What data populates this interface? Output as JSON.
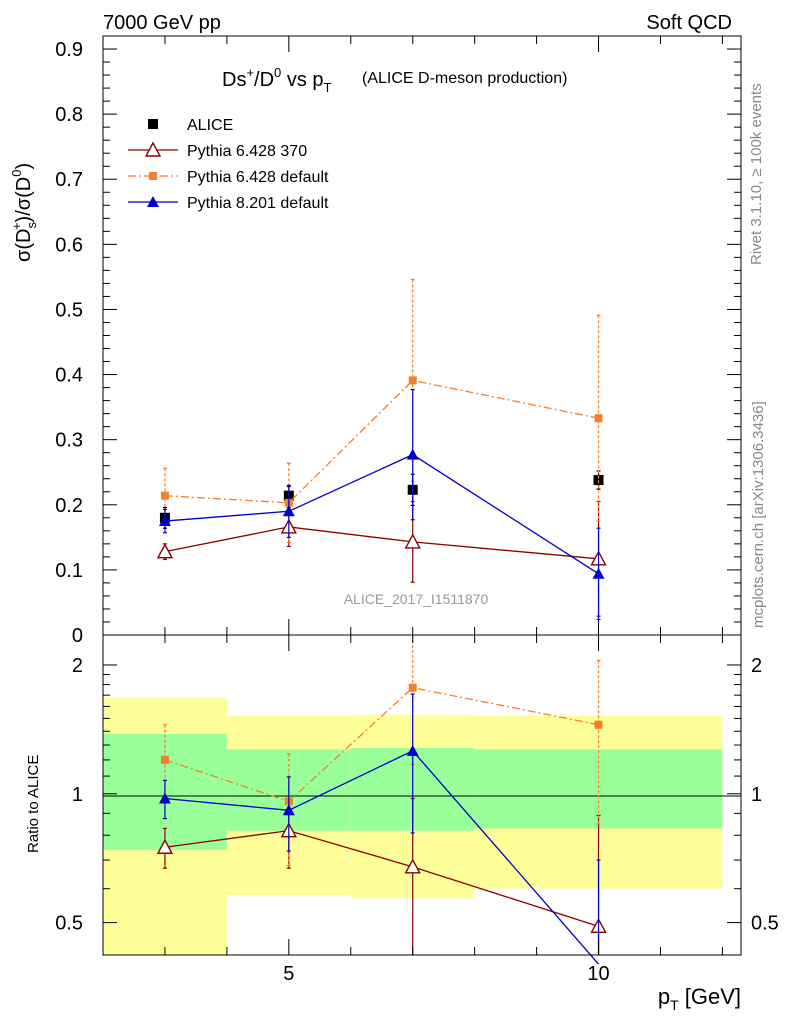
{
  "header": {
    "energy": "7000 GeV pp",
    "process": "Soft QCD"
  },
  "side_labels": {
    "rivet": "Rivet 3.1.10, ≥ 100k events",
    "mcplots": "mcplots.cern.ch [arXiv:1306.3436]"
  },
  "chart_data": [
    {
      "type": "line",
      "title": {
        "main": "Ds",
        "main_sup": "+",
        "main_rest": "/D",
        "main_sup2": "0",
        "main_vs": " vs p",
        "main_sub": "T",
        "sub": "(ALICE D-meson production)"
      },
      "ylabel": {
        "sigma1": "σ(D",
        "sub": "s",
        "sup": "+",
        "rest": ")/σ(D",
        "sup2": "0",
        "end": ")"
      },
      "ylim": [
        0,
        0.92
      ],
      "yticks": [
        {
          "v": 0,
          "label": "0"
        },
        {
          "v": 0.1,
          "label": "0.1"
        },
        {
          "v": 0.2,
          "label": "0.2"
        },
        {
          "v": 0.3,
          "label": "0.3"
        },
        {
          "v": 0.4,
          "label": "0.4"
        },
        {
          "v": 0.5,
          "label": "0.5"
        },
        {
          "v": 0.6,
          "label": "0.6"
        },
        {
          "v": 0.7,
          "label": "0.7"
        },
        {
          "v": 0.8,
          "label": "0.8"
        },
        {
          "v": 0.9,
          "label": "0.9"
        }
      ],
      "xlim": [
        2,
        12.3
      ],
      "analysis_label": "ALICE_2017_I1511870",
      "legend_position": "top-left",
      "series": [
        {
          "name": "ALICE",
          "color": "#000000",
          "marker": "square",
          "line": "none",
          "x": [
            3,
            5,
            7,
            10
          ],
          "y": [
            0.18,
            0.214,
            0.223,
            0.238
          ],
          "err_hi": [
            0.016,
            0.014,
            0.024,
            0.014
          ],
          "err_lo": [
            0.016,
            0.014,
            0.024,
            0.014
          ]
        },
        {
          "name": "Pythia 6.428 370",
          "color": "#8b0000",
          "marker": "triangle-open",
          "line": "solid",
          "x": [
            3,
            5,
            7,
            10
          ],
          "y": [
            0.128,
            0.166,
            0.143,
            0.117
          ],
          "err_hi": [
            0.012,
            0.03,
            0.062,
            0.088
          ],
          "err_lo": [
            0.012,
            0.03,
            0.062,
            0.088
          ]
        },
        {
          "name": "Pythia 6.428 default",
          "color": "#f47f2c",
          "marker": "square-small",
          "line": "dashdot",
          "x": [
            3,
            5,
            7,
            10
          ],
          "y": [
            0.214,
            0.203,
            0.391,
            0.333
          ],
          "err_hi": [
            0.042,
            0.061,
            0.155,
            0.158
          ],
          "err_lo": [
            0.042,
            0.061,
            0.155,
            0.158
          ]
        },
        {
          "name": "Pythia 8.201 default",
          "color": "#0000cc",
          "marker": "triangle-filled",
          "line": "solid",
          "x": [
            3,
            5,
            7,
            10
          ],
          "y": [
            0.175,
            0.19,
            0.277,
            0.094
          ],
          "err_hi": [
            0.018,
            0.04,
            0.1,
            0.07
          ],
          "err_lo": [
            0.018,
            0.04,
            0.1,
            0.07
          ]
        }
      ]
    },
    {
      "type": "line",
      "ylabel": "Ratio to ALICE",
      "xlabel": {
        "main": "p",
        "sub": "T",
        "rest": " [GeV]"
      },
      "yscale": "log",
      "ylim": [
        0.42,
        2.35
      ],
      "xlim": [
        2,
        12.3
      ],
      "yticks": [
        {
          "v": 0.5,
          "label": "0.5"
        },
        {
          "v": 1,
          "label": "1"
        },
        {
          "v": 2,
          "label": "2"
        }
      ],
      "xticks": [
        {
          "v": 5,
          "label": "5"
        },
        {
          "v": 10,
          "label": "10"
        }
      ],
      "bands": [
        {
          "x": [
            2,
            4
          ],
          "yellow": [
            0.42,
            1.68
          ],
          "green": [
            0.74,
            1.38
          ]
        },
        {
          "x": [
            4,
            6
          ],
          "yellow": [
            0.58,
            1.52
          ],
          "green": [
            0.82,
            1.27
          ]
        },
        {
          "x": [
            6,
            8
          ],
          "yellow": [
            0.57,
            1.53
          ],
          "green": [
            0.82,
            1.28
          ]
        },
        {
          "x": [
            8,
            12
          ],
          "yellow": [
            0.6,
            1.52
          ],
          "green": [
            0.83,
            1.27
          ]
        }
      ],
      "series": [
        {
          "name": "Pythia 6.428 370",
          "color": "#8b0000",
          "marker": "triangle-open",
          "line": "solid",
          "x": [
            3,
            5,
            7,
            10
          ],
          "y": [
            0.75,
            0.82,
            0.675,
            0.49
          ],
          "err_hi": [
            0.08,
            0.15,
            0.3,
            0.4
          ],
          "err_lo": [
            0.08,
            0.15,
            0.3,
            0.15
          ]
        },
        {
          "name": "Pythia 6.428 default",
          "color": "#f47f2c",
          "marker": "square-small",
          "line": "dashdot",
          "x": [
            3,
            5,
            7,
            10
          ],
          "y": [
            1.2,
            0.96,
            1.77,
            1.45
          ],
          "err_hi": [
            0.25,
            0.28,
            0.6,
            0.6
          ],
          "err_lo": [
            0.25,
            0.28,
            0.6,
            0.6
          ]
        },
        {
          "name": "Pythia 8.201 default",
          "color": "#0000cc",
          "marker": "triangle-filled",
          "line": "solid",
          "x": [
            3,
            5,
            7,
            10
          ],
          "y": [
            0.975,
            0.915,
            1.26,
            0.4
          ],
          "err_hi": [
            0.1,
            0.18,
            0.45,
            0.3
          ],
          "err_lo": [
            0.1,
            0.18,
            0.45,
            0.3
          ]
        }
      ]
    }
  ]
}
